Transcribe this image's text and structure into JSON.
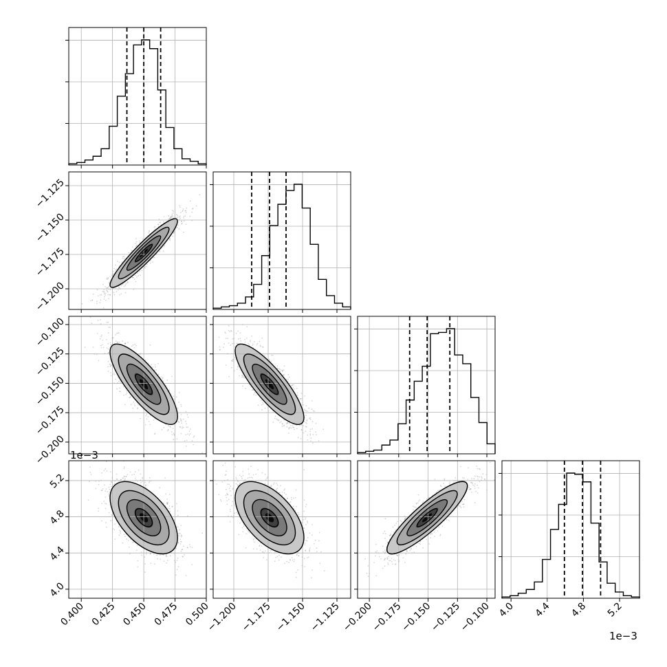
{
  "chart_data": {
    "type": "corner",
    "grid": true,
    "parameters": [
      {
        "range": [
          0.39,
          0.5
        ],
        "ticks": [
          0.4,
          0.425,
          0.45,
          0.475,
          0.5
        ],
        "tick_labels": [
          "0.400",
          "0.425",
          "0.450",
          "0.475",
          "0.500"
        ],
        "quantiles": [
          0.4365,
          0.45,
          0.4635
        ]
      },
      {
        "range": [
          -1.215,
          -1.115
        ],
        "ticks": [
          -1.2,
          -1.175,
          -1.15,
          -1.125
        ],
        "tick_labels": [
          "−1.200",
          "−1.175",
          "−1.150",
          "−1.125"
        ],
        "quantiles": [
          -1.187,
          -1.174,
          -1.162
        ]
      },
      {
        "range": [
          -0.21,
          -0.093
        ],
        "ticks": [
          -0.2,
          -0.175,
          -0.15,
          -0.125,
          -0.1
        ],
        "tick_labels": [
          "−0.200",
          "−0.175",
          "−0.150",
          "−0.125",
          "−0.100"
        ],
        "quantiles": [
          -0.1657,
          -0.1508,
          -0.1315
        ]
      },
      {
        "range": [
          3.9,
          5.42
        ],
        "ticks": [
          4.0,
          4.4,
          4.8,
          5.2
        ],
        "tick_labels": [
          "4.0",
          "4.4",
          "4.8",
          "5.2"
        ],
        "quantiles": [
          4.59,
          4.79,
          4.99
        ]
      }
    ],
    "axis_offset_label": "1e−3",
    "histograms": [
      [
        0.01,
        0.02,
        0.04,
        0.07,
        0.13,
        0.31,
        0.55,
        0.73,
        0.96,
        1.0,
        0.93,
        0.6,
        0.3,
        0.13,
        0.05,
        0.03,
        0.01
      ],
      [
        0.01,
        0.02,
        0.03,
        0.05,
        0.1,
        0.2,
        0.43,
        0.67,
        0.84,
        0.95,
        1.0,
        0.81,
        0.52,
        0.24,
        0.11,
        0.05,
        0.02
      ],
      [
        0.01,
        0.02,
        0.03,
        0.07,
        0.11,
        0.24,
        0.43,
        0.58,
        0.7,
        0.96,
        0.97,
        1.0,
        0.79,
        0.72,
        0.45,
        0.25,
        0.08
      ],
      [
        0.01,
        0.02,
        0.04,
        0.07,
        0.13,
        0.31,
        0.55,
        0.75,
        1.0,
        0.99,
        0.93,
        0.6,
        0.29,
        0.12,
        0.05,
        0.02,
        0.01
      ]
    ],
    "correlations": [
      [
        1.0,
        0.93,
        -0.8,
        -0.55
      ],
      [
        0.93,
        1.0,
        -0.83,
        -0.55
      ],
      [
        -0.8,
        -0.83,
        1.0,
        0.88
      ],
      [
        -0.55,
        -0.55,
        0.88,
        1.0
      ]
    ]
  }
}
